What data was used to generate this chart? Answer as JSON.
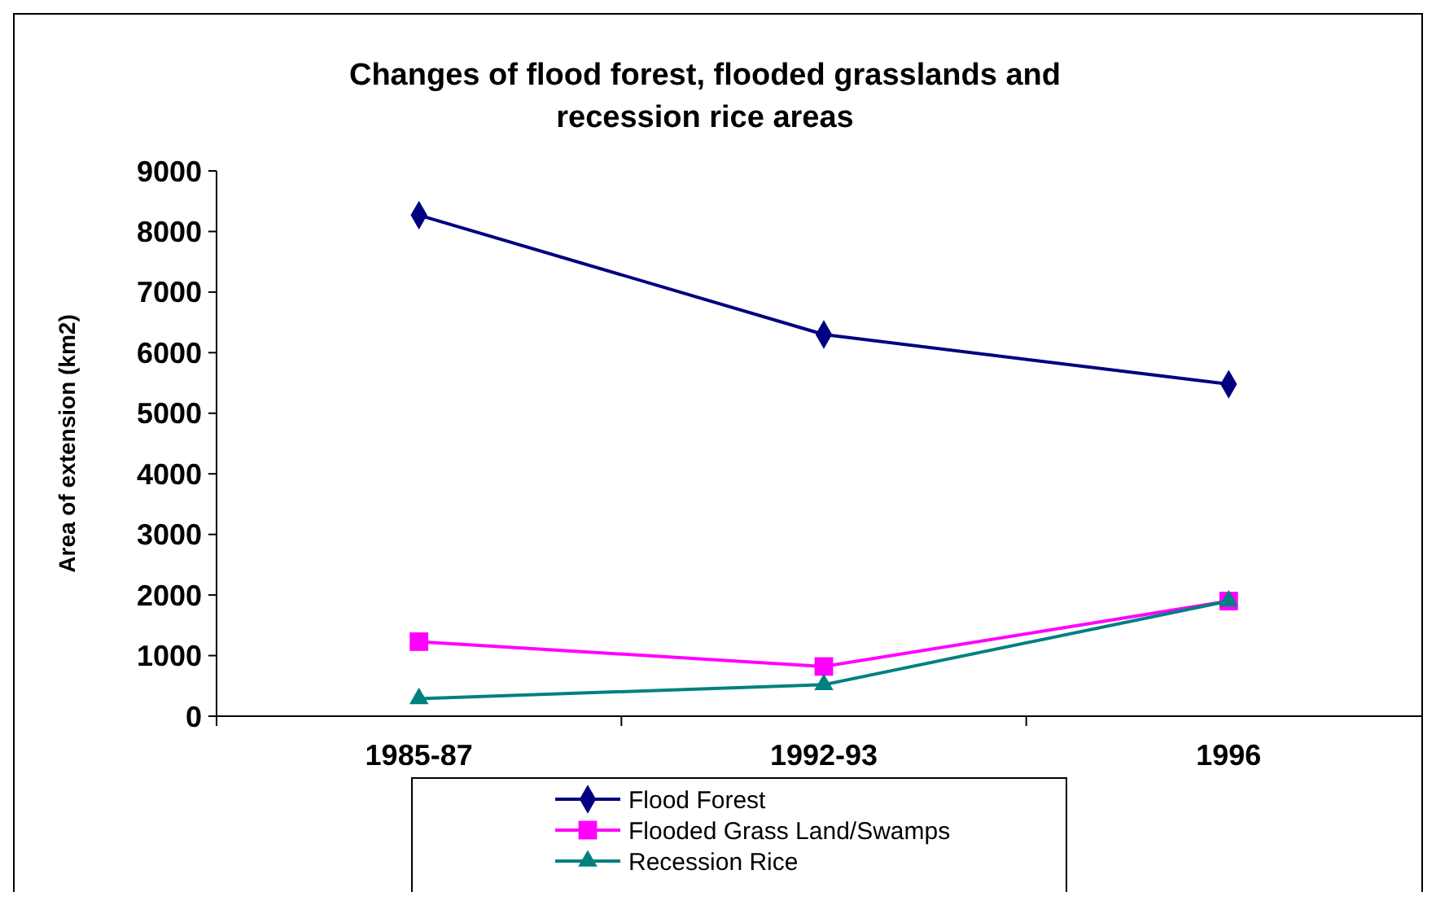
{
  "chart_data": {
    "type": "line",
    "title": "Changes of flood forest, flooded grasslands and recession rice areas",
    "ylabel": "Area of extension (km2)",
    "categories": [
      "1985-87",
      "1992-93",
      "1996"
    ],
    "series": [
      {
        "name": "Flood Forest",
        "color": "#000080",
        "marker": "diamond",
        "values": [
          8270,
          6300,
          5480
        ]
      },
      {
        "name": "Flooded Grass Land/Swamps",
        "color": "#ff00ff",
        "marker": "square",
        "values": [
          1230,
          820,
          1900
        ]
      },
      {
        "name": "Recession Rice",
        "color": "#008080",
        "marker": "triangle",
        "values": [
          290,
          520,
          1900
        ]
      }
    ],
    "ylim": [
      0,
      9000
    ],
    "yticks": [
      0,
      1000,
      2000,
      3000,
      4000,
      5000,
      6000,
      7000,
      8000,
      9000
    ],
    "grid": false,
    "legend": "bottom"
  }
}
